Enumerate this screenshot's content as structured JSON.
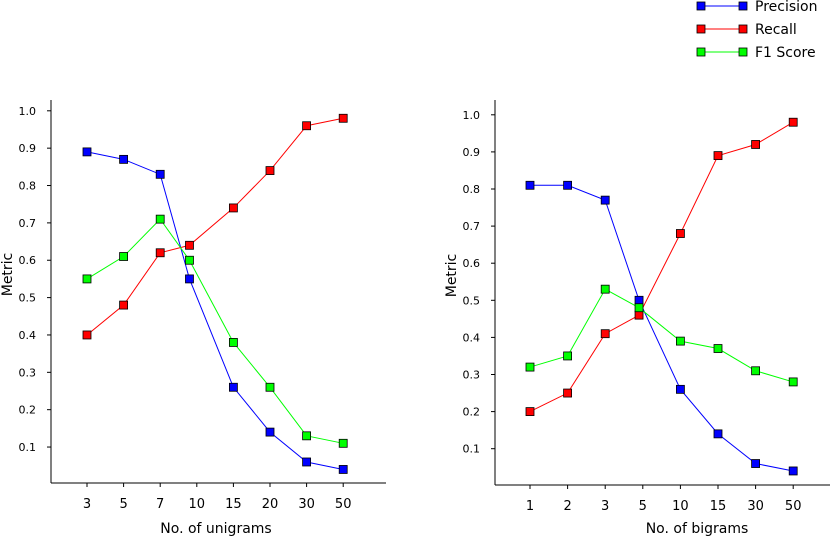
{
  "legend": {
    "position": "top-right",
    "items": [
      {
        "label": "Precision",
        "color": "#0000ff",
        "marker": "square"
      },
      {
        "label": "Recall",
        "color": "#ff0000",
        "marker": "square"
      },
      {
        "label": "F1 Score",
        "color": "#00ff00",
        "marker": "square"
      }
    ]
  },
  "chart_data": [
    {
      "type": "line",
      "xlabel": "No. of unigrams",
      "ylabel": "Metric",
      "categories": [
        "3",
        "5",
        "7",
        "10",
        "15",
        "20",
        "30",
        "50"
      ],
      "y_ticks": [
        "0.1",
        "0.2",
        "0.3",
        "0.4",
        "0.5",
        "0.6",
        "0.7",
        "0.8",
        "0.9",
        "1.0"
      ],
      "ylim": [
        0.0,
        1.05
      ],
      "grid": false,
      "series": [
        {
          "name": "Precision",
          "color": "#0000ff",
          "x": [
            0,
            1,
            2,
            2.8,
            4,
            5,
            6,
            7
          ],
          "values": [
            0.89,
            0.87,
            0.83,
            0.55,
            0.26,
            0.14,
            0.06,
            0.04
          ]
        },
        {
          "name": "Recall",
          "color": "#ff0000",
          "x": [
            0,
            1,
            2,
            2.8,
            4,
            5,
            6,
            7
          ],
          "values": [
            0.4,
            0.48,
            0.62,
            0.64,
            0.74,
            0.84,
            0.96,
            0.98
          ]
        },
        {
          "name": "F1 Score",
          "color": "#00ff00",
          "x": [
            0,
            1,
            2,
            2.8,
            4,
            5,
            6,
            7
          ],
          "values": [
            0.55,
            0.61,
            0.71,
            0.6,
            0.38,
            0.26,
            0.13,
            0.11
          ]
        }
      ]
    },
    {
      "type": "line",
      "xlabel": "No. of bigrams",
      "ylabel": "Metric",
      "categories": [
        "1",
        "2",
        "3",
        "5",
        "10",
        "15",
        "30",
        "50"
      ],
      "y_ticks": [
        "0.1",
        "0.2",
        "0.3",
        "0.4",
        "0.5",
        "0.6",
        "0.7",
        "0.8",
        "0.9",
        "1.0"
      ],
      "ylim": [
        0.0,
        1.05
      ],
      "grid": false,
      "series": [
        {
          "name": "Precision",
          "color": "#0000ff",
          "x": [
            0,
            1,
            2,
            2.9,
            4,
            5,
            6,
            7
          ],
          "values": [
            0.81,
            0.81,
            0.77,
            0.5,
            0.26,
            0.14,
            0.06,
            0.04
          ]
        },
        {
          "name": "Recall",
          "color": "#ff0000",
          "x": [
            0,
            1,
            2,
            2.9,
            4,
            5,
            6,
            7
          ],
          "values": [
            0.2,
            0.25,
            0.41,
            0.46,
            0.68,
            0.89,
            0.92,
            0.98
          ]
        },
        {
          "name": "F1 Score",
          "color": "#00ff00",
          "x": [
            0,
            1,
            2,
            2.9,
            4,
            5,
            6,
            7
          ],
          "values": [
            0.32,
            0.35,
            0.53,
            0.48,
            0.39,
            0.37,
            0.31,
            0.28
          ]
        }
      ]
    }
  ]
}
